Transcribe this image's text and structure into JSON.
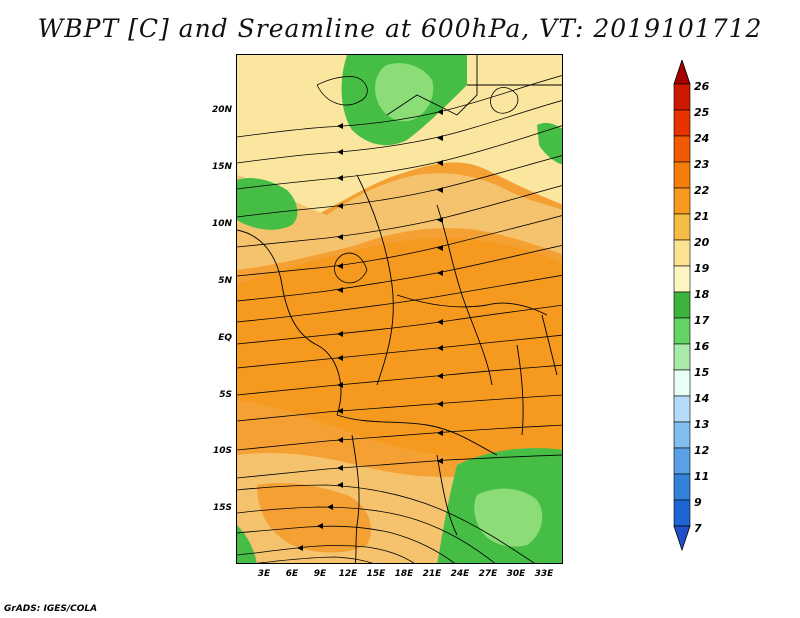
{
  "title": "WBPT [C] and Sreamline at 600hPa, VT: 2019101712",
  "footer": "GrADS: IGES/COLA",
  "lat_labels": [
    "20N",
    "15N",
    "10N",
    "5N",
    "EQ",
    "5S",
    "10S",
    "15S"
  ],
  "lat_values": [
    20,
    15,
    10,
    5,
    0,
    -5,
    -10,
    -15
  ],
  "lon_labels": [
    "3E",
    "6E",
    "9E",
    "12E",
    "15E",
    "18E",
    "21E",
    "24E",
    "27E",
    "30E",
    "33E"
  ],
  "lon_values": [
    3,
    6,
    9,
    12,
    15,
    18,
    21,
    24,
    27,
    30,
    33
  ],
  "colorbar": {
    "labels": [
      "26",
      "25",
      "24",
      "23",
      "22",
      "21",
      "20",
      "19",
      "18",
      "17",
      "16",
      "15",
      "14",
      "13",
      "12",
      "11",
      "9",
      "7"
    ],
    "colors": [
      "#a50000",
      "#cc1a00",
      "#e83200",
      "#f05a00",
      "#f57d0a",
      "#f59a1e",
      "#f5bd46",
      "#fbe392",
      "#fdf6c2",
      "#3cb43c",
      "#64d264",
      "#a8eba8",
      "#e8fff8",
      "#b4dcfa",
      "#82bef0",
      "#5aa0e6",
      "#3282dc",
      "#1e64d2",
      "#1e50c8"
    ]
  },
  "colors": {
    "orange": "#f5a032",
    "light_orange": "#f5c36e",
    "pale_yellow": "#fbe6a0",
    "green": "#46be46",
    "light_green": "#8cdc78",
    "streamline": "#000000"
  }
}
